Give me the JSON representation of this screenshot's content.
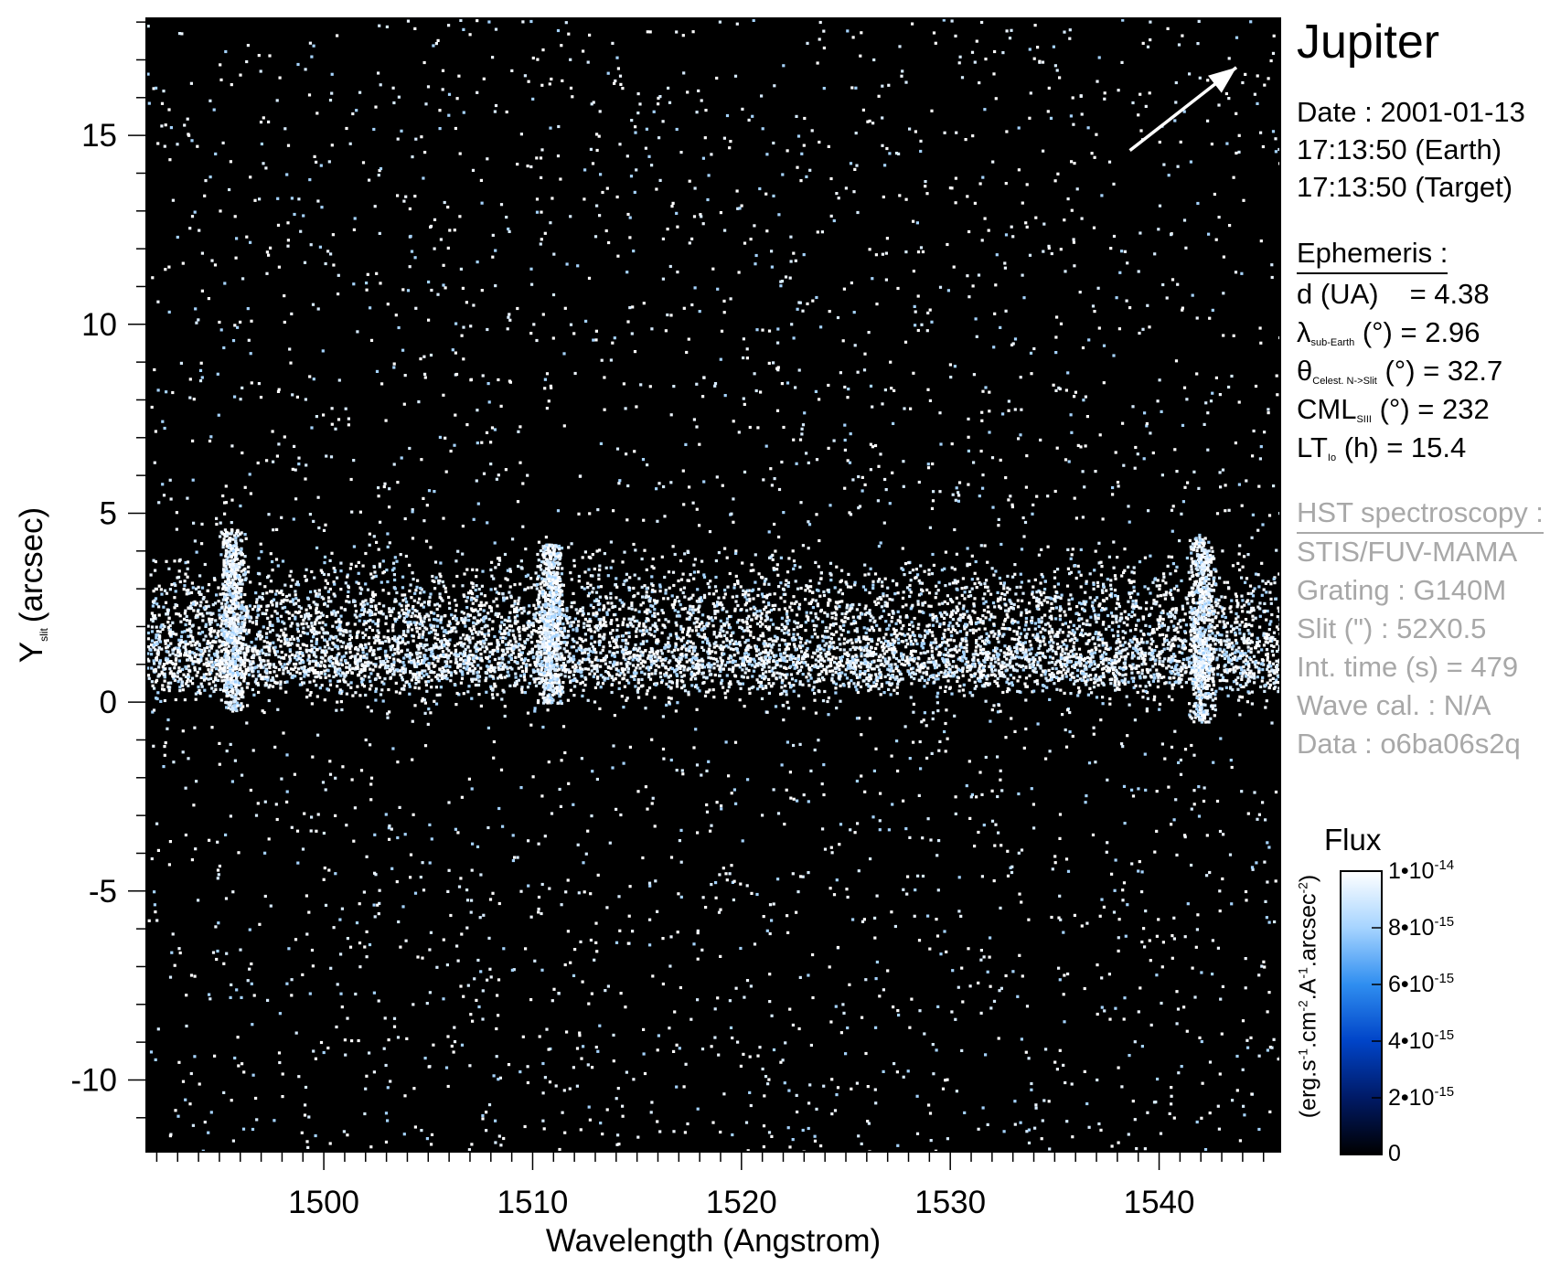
{
  "chart_data": {
    "type": "heatmap",
    "title": "Jupiter",
    "xlabel": "Wavelength (Angstrom)",
    "ylabel_main": "Y",
    "ylabel_sub": "slit",
    "ylabel_unit": "(arcsec)",
    "xlim": [
      1491.5,
      1545.8
    ],
    "ylim": [
      -11.9,
      18.1
    ],
    "x_ticks": [
      1500,
      1510,
      1520,
      1530,
      1540
    ],
    "y_ticks": [
      15,
      10,
      5,
      0,
      -5,
      -10
    ],
    "background_color": "#000000",
    "emission_band": {
      "y_min": -0.6,
      "y_max": 4.5
    },
    "bright_features": [
      {
        "x_center": 1495.6,
        "y_range": [
          -0.2,
          4.6
        ]
      },
      {
        "x_center": 1510.8,
        "y_range": [
          0.0,
          4.2
        ]
      },
      {
        "x_center": 1542.0,
        "y_range": [
          -0.5,
          4.4
        ]
      }
    ],
    "arrow": {
      "from": [
        1538.6,
        14.6
      ],
      "to": [
        1543.7,
        16.8
      ]
    },
    "colorbar": {
      "title": "Flux",
      "label": "(erg.s-1.cm-2.A-1.arcsec-2)",
      "range": [
        0,
        1e-14
      ],
      "colors": [
        "#000000",
        "#001a66",
        "#0044c8",
        "#2f8ef0",
        "#a6d4ff",
        "#ffffff"
      ],
      "ticks": [
        {
          "value": 1e-14,
          "mantissa": "1•10",
          "exp": "-14"
        },
        {
          "value": 8e-15,
          "mantissa": "8•10",
          "exp": "-15"
        },
        {
          "value": 6e-15,
          "mantissa": "6•10",
          "exp": "-15"
        },
        {
          "value": 4e-15,
          "mantissa": "4•10",
          "exp": "-15"
        },
        {
          "value": 2e-15,
          "mantissa": "2•10",
          "exp": "-15"
        },
        {
          "value": 0,
          "mantissa": "0",
          "exp": ""
        }
      ]
    }
  },
  "info": {
    "date_line": "Date : 2001-01-13",
    "earth_time": "17:13:50 (Earth)",
    "target_time": "17:13:50 (Target)",
    "ephemeris_header": "Ephemeris :",
    "d_label": "d (UA)",
    "d_value": "= 4.38",
    "lambda_symbol": "λ",
    "lambda_sub": "sub-Earth",
    "lambda_rest": "(°)  = 2.96",
    "theta_symbol": "θ",
    "theta_sub": "Celest. N->Slit",
    "theta_rest": "(°) = 32.7",
    "cml_main": "CML",
    "cml_sub": "SIII",
    "cml_rest": "(°) = 232",
    "lt_main": "LT",
    "lt_sub": "Io",
    "lt_rest": "(h) = 15.4",
    "hst_header": "HST spectroscopy :",
    "instrument": "STIS/FUV-MAMA",
    "grating": "Grating : G140M",
    "slit": "Slit (\") : 52X0.5",
    "int_time": "Int. time (s) = 479",
    "wave_cal": "Wave cal. : N/A",
    "data_id": "Data : o6ba06s2q"
  }
}
